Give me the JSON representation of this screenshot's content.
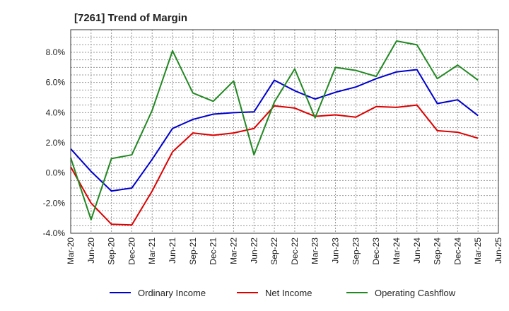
{
  "chart_data": {
    "type": "line",
    "title": "[7261]  Trend of Margin",
    "xlabel": "",
    "ylabel": "",
    "ylim": [
      -4.0,
      9.5
    ],
    "yticks": [
      -4.0,
      -2.0,
      0.0,
      2.0,
      4.0,
      6.0,
      8.0
    ],
    "ytick_labels": [
      "-4.0%",
      "-2.0%",
      "0.0%",
      "2.0%",
      "4.0%",
      "6.0%",
      "8.0%"
    ],
    "grid": true,
    "legend_position": "bottom",
    "categories": [
      "Mar-20",
      "Jun-20",
      "Sep-20",
      "Dec-20",
      "Mar-21",
      "Jun-21",
      "Sep-21",
      "Dec-21",
      "Mar-22",
      "Jun-22",
      "Sep-22",
      "Dec-22",
      "Mar-23",
      "Jun-23",
      "Sep-23",
      "Dec-23",
      "Mar-24",
      "Jun-24",
      "Sep-24",
      "Dec-24",
      "Mar-25",
      "Jun-25"
    ],
    "series": [
      {
        "name": "Ordinary Income",
        "color": "#0000cc",
        "values": [
          1.6,
          0.1,
          -1.2,
          -1.0,
          0.9,
          2.95,
          3.55,
          3.9,
          4.0,
          4.05,
          6.15,
          5.45,
          4.9,
          5.35,
          5.7,
          6.25,
          6.7,
          6.85,
          4.6,
          4.85,
          3.8,
          null
        ]
      },
      {
        "name": "Net Income",
        "color": "#dd0000",
        "values": [
          0.4,
          -2.0,
          -3.4,
          -3.45,
          -1.2,
          1.4,
          2.65,
          2.5,
          2.65,
          2.95,
          4.45,
          4.3,
          3.75,
          3.85,
          3.7,
          4.4,
          4.35,
          4.5,
          2.8,
          2.7,
          2.3,
          null
        ]
      },
      {
        "name": "Operating Cashflow",
        "color": "#228822",
        "values": [
          1.0,
          -3.1,
          0.95,
          1.2,
          4.15,
          8.1,
          5.3,
          4.75,
          6.1,
          1.2,
          4.7,
          6.9,
          3.65,
          7.0,
          6.8,
          6.4,
          8.75,
          8.5,
          6.25,
          7.15,
          6.15,
          null
        ]
      }
    ]
  }
}
